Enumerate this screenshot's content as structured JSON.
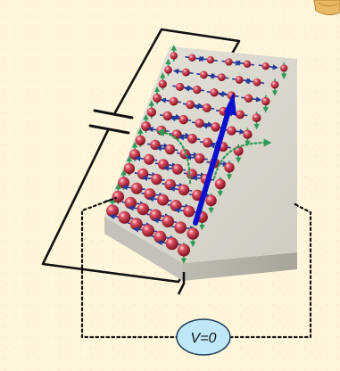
{
  "voltmeter": {
    "label": "V=0",
    "fill": "#bfe7f7",
    "stroke": "#1f3f5f"
  },
  "colors": {
    "background": "#fff6dc",
    "slab_top": "#dcdad0",
    "slab_side_front": "#c4c2b8",
    "slab_side_right": "#b0aea3",
    "atom": "#c0283a",
    "spin_in_plane": "#243a9a",
    "spin_edge": "#2c9a56",
    "spin_current": "#2c9a56",
    "charge_current": "#0a10cc",
    "wire": "#111111"
  },
  "icons": {
    "battery": "battery-icon",
    "corner_ornament": "corner-ornament-icon"
  }
}
